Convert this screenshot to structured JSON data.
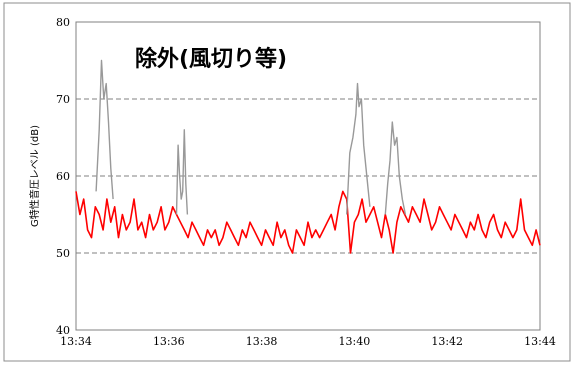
{
  "chart_data": {
    "type": "line",
    "title": "",
    "annotation": "除外(風切り等)",
    "xlabel": "",
    "ylabel": "G特性音圧レベル (dB)",
    "ylim": [
      40,
      80
    ],
    "yticks": [
      40,
      50,
      60,
      70,
      80
    ],
    "xlim": [
      "13:34",
      "13:44"
    ],
    "xticks": [
      "13:34",
      "13:36",
      "13:38",
      "13:40",
      "13:42",
      "13:44"
    ],
    "grid": {
      "horizontal": "dashed",
      "values": [
        50,
        60,
        70
      ]
    },
    "series": [
      {
        "color": "#ff0000",
        "x": [
          "13:34:00",
          "13:34:05",
          "13:34:10",
          "13:34:15",
          "13:34:20",
          "13:34:25",
          "13:34:30",
          "13:34:35",
          "13:34:40",
          "13:34:45",
          "13:34:50",
          "13:34:55",
          "13:35:00",
          "13:35:05",
          "13:35:10",
          "13:35:15",
          "13:35:20",
          "13:35:25",
          "13:35:30",
          "13:35:35",
          "13:35:40",
          "13:35:45",
          "13:35:50",
          "13:35:55",
          "13:36:00",
          "13:36:05",
          "13:36:10",
          "13:36:15",
          "13:36:20",
          "13:36:25",
          "13:36:30",
          "13:36:35",
          "13:36:40",
          "13:36:45",
          "13:36:50",
          "13:36:55",
          "13:37:00",
          "13:37:05",
          "13:37:10",
          "13:37:15",
          "13:37:20",
          "13:37:25",
          "13:37:30",
          "13:37:35",
          "13:37:40",
          "13:37:45",
          "13:37:50",
          "13:37:55",
          "13:38:00",
          "13:38:05",
          "13:38:10",
          "13:38:15",
          "13:38:20",
          "13:38:25",
          "13:38:30",
          "13:38:35",
          "13:38:40",
          "13:38:45",
          "13:38:50",
          "13:38:55",
          "13:39:00",
          "13:39:05",
          "13:39:10",
          "13:39:15",
          "13:39:20",
          "13:39:25",
          "13:39:30",
          "13:39:35",
          "13:39:40",
          "13:39:45",
          "13:39:50",
          "13:39:55",
          "13:40:00",
          "13:40:05",
          "13:40:10",
          "13:40:15",
          "13:40:20",
          "13:40:25",
          "13:40:30",
          "13:40:35",
          "13:40:40",
          "13:40:45",
          "13:40:50",
          "13:40:55",
          "13:41:00",
          "13:41:05",
          "13:41:10",
          "13:41:15",
          "13:41:20",
          "13:41:25",
          "13:41:30",
          "13:41:35",
          "13:41:40",
          "13:41:45",
          "13:41:50",
          "13:41:55",
          "13:42:00",
          "13:42:05",
          "13:42:10",
          "13:42:15",
          "13:42:20",
          "13:42:25",
          "13:42:30",
          "13:42:35",
          "13:42:40",
          "13:42:45",
          "13:42:50",
          "13:42:55",
          "13:43:00",
          "13:43:05",
          "13:43:10",
          "13:43:15",
          "13:43:20",
          "13:43:25",
          "13:43:30",
          "13:43:35",
          "13:43:40",
          "13:43:45",
          "13:43:50",
          "13:43:55",
          "13:44:00"
        ],
        "values": [
          58,
          55,
          57,
          53,
          52,
          56,
          55,
          53,
          57,
          54,
          56,
          52,
          55,
          53,
          54,
          57,
          53,
          54,
          52,
          55,
          53,
          54,
          56,
          53,
          54,
          56,
          55,
          54,
          53,
          52,
          54,
          53,
          52,
          51,
          53,
          52,
          53,
          51,
          52,
          54,
          53,
          52,
          51,
          53,
          52,
          54,
          53,
          52,
          51,
          53,
          52,
          51,
          54,
          52,
          53,
          51,
          50,
          53,
          52,
          51,
          54,
          52,
          53,
          52,
          53,
          54,
          55,
          53,
          56,
          58,
          57,
          50,
          54,
          55,
          57,
          54,
          55,
          56,
          54,
          52,
          55,
          53,
          50,
          54,
          56,
          55,
          54,
          56,
          55,
          54,
          57,
          55,
          53,
          54,
          56,
          55,
          54,
          53,
          55,
          54,
          53,
          52,
          54,
          53,
          55,
          53,
          52,
          54,
          55,
          53,
          52,
          54,
          53,
          52,
          53,
          57,
          53,
          52,
          51,
          53,
          51
        ]
      },
      {
        "color": "#999999",
        "segments": [
          {
            "x": [
              "13:34:26",
              "13:34:30",
              "13:34:33",
              "13:34:36",
              "13:34:39",
              "13:34:42",
              "13:34:45",
              "13:34:48"
            ],
            "values": [
              58,
              66,
              75,
              70,
              72,
              67,
              61,
              57
            ]
          },
          {
            "x": [
              "13:36:10",
              "13:36:12",
              "13:36:14",
              "13:36:16",
              "13:36:18",
              "13:36:20",
              "13:36:22",
              "13:36:24"
            ],
            "values": [
              55,
              64,
              60,
              57,
              58,
              66,
              59,
              55
            ]
          },
          {
            "x": [
              "13:39:50",
              "13:39:54",
              "13:39:58",
              "13:40:02",
              "13:40:04",
              "13:40:06",
              "13:40:09",
              "13:40:12",
              "13:40:16",
              "13:40:20"
            ],
            "values": [
              55,
              63,
              65,
              68,
              72,
              69,
              70,
              64,
              60,
              56
            ]
          },
          {
            "x": [
              "13:40:40",
              "13:40:43",
              "13:40:46",
              "13:40:49",
              "13:40:52",
              "13:40:55",
              "13:40:58",
              "13:41:02",
              "13:41:06"
            ],
            "values": [
              55,
              59,
              62,
              67,
              64,
              65,
              60,
              57,
              55
            ]
          }
        ]
      }
    ]
  }
}
